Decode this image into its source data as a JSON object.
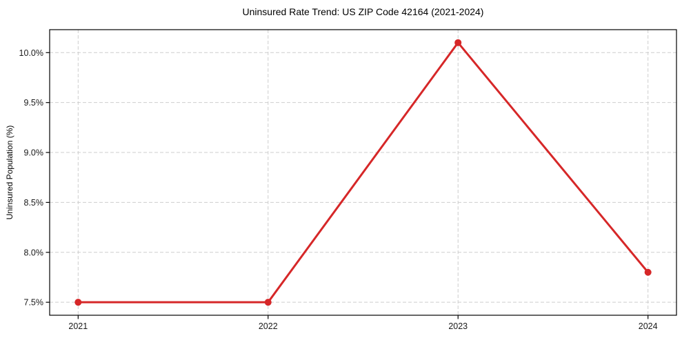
{
  "figure": {
    "background": "#ffffff"
  },
  "chart_data": {
    "type": "line",
    "title": "Uninsured Rate Trend: US ZIP Code 42164 (2021-2024)",
    "xlabel": "",
    "ylabel": "Uninsured Population (%)",
    "categories": [
      "2021",
      "2022",
      "2023",
      "2024"
    ],
    "series": [
      {
        "name": "uninsured-rate",
        "values": [
          7.5,
          7.5,
          10.1,
          7.8
        ],
        "color": "#d62728",
        "marker": "circle"
      }
    ],
    "yticks": [
      7.5,
      8.0,
      8.5,
      9.0,
      9.5,
      10.0
    ],
    "ytick_labels": [
      "7.5%",
      "8.0%",
      "8.5%",
      "9.0%",
      "9.5%",
      "10.0%"
    ],
    "ylim": [
      7.37,
      10.23
    ],
    "grid": true,
    "grid_style": "dashed",
    "grid_color": "#cdcdcd",
    "spine_color": "#000000",
    "legend_position": "none"
  }
}
